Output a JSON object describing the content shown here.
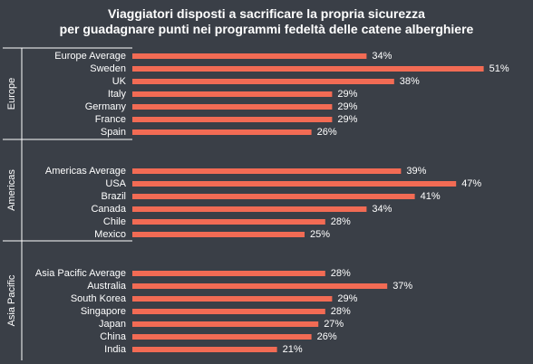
{
  "chart_data": {
    "type": "bar",
    "orientation": "horizontal",
    "title_line1": "Viaggiatori  disposti a sacrificare la propria sicurezza",
    "title_line2": "per guadagnare punti nei programmi  fedeltà delle catene alberghiere",
    "bar_color": "#f26b54",
    "value_suffix": "%",
    "xlim": [
      0,
      60
    ],
    "grid": false,
    "groups": [
      {
        "name": "Europe",
        "categories": [
          "Europe Average",
          "Sweden",
          "UK",
          "Italy",
          "Germany",
          "France",
          "Spain"
        ],
        "values": [
          34,
          51,
          38,
          29,
          29,
          29,
          26
        ]
      },
      {
        "name": "Americas",
        "categories": [
          "Americas Average",
          "USA",
          "Brazil",
          "Canada",
          "Chile",
          "Mexico"
        ],
        "values": [
          39,
          47,
          41,
          34,
          28,
          25
        ]
      },
      {
        "name": "Asia Pacific",
        "categories": [
          "Asia Pacific Average",
          "Australia",
          "South Korea",
          "Singapore",
          "Japan",
          "China",
          "India"
        ],
        "values": [
          28,
          37,
          29,
          28,
          27,
          26,
          21
        ]
      }
    ]
  }
}
